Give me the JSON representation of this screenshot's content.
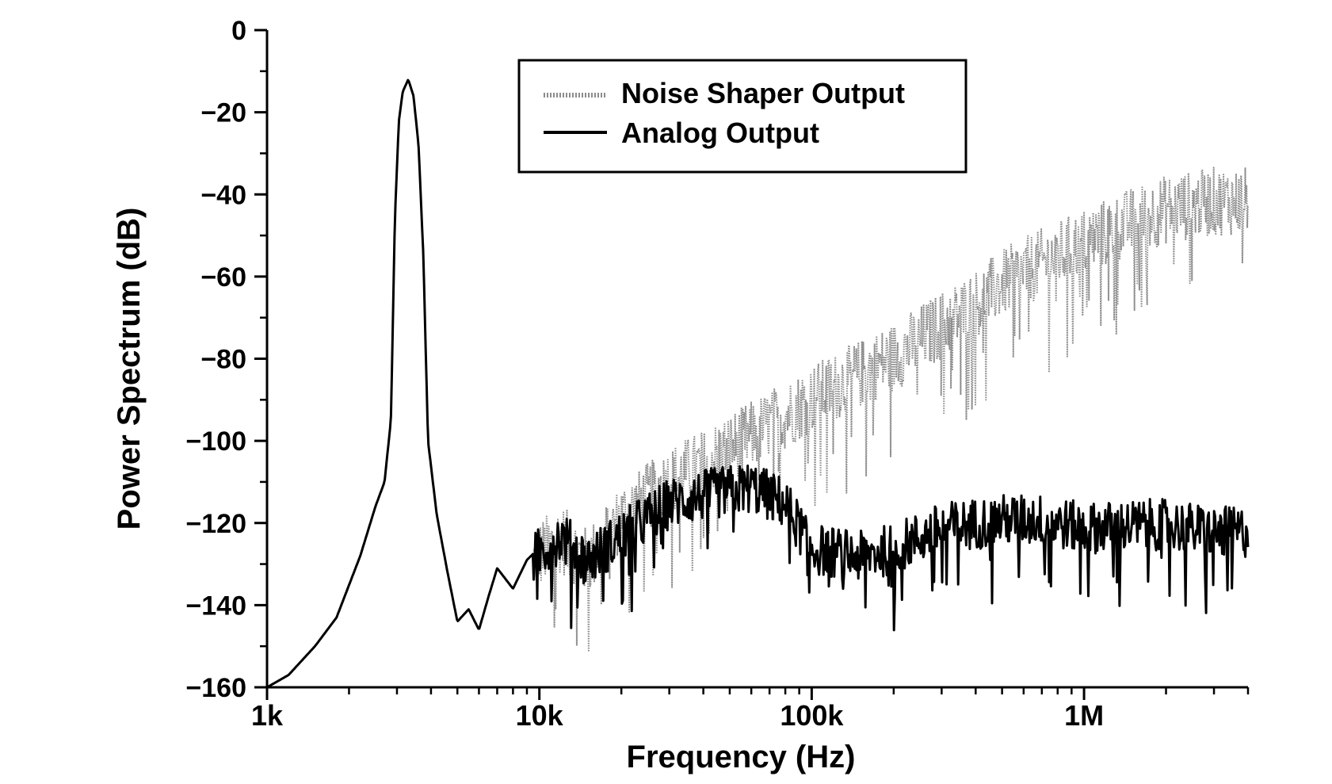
{
  "chart_data": {
    "type": "line",
    "xlabel": "Frequency (Hz)",
    "ylabel": "Power Spectrum (dB)",
    "x_scale": "log",
    "xlim": [
      1000,
      4000000
    ],
    "ylim": [
      -160,
      0
    ],
    "x_ticks": [
      {
        "value": 1000,
        "label": "1k"
      },
      {
        "value": 10000,
        "label": "10k"
      },
      {
        "value": 100000,
        "label": "100k"
      },
      {
        "value": 1000000,
        "label": "1M"
      }
    ],
    "y_ticks": [
      {
        "value": 0,
        "label": "0"
      },
      {
        "value": -20,
        "label": "−20"
      },
      {
        "value": -40,
        "label": "−40"
      },
      {
        "value": -60,
        "label": "−60"
      },
      {
        "value": -80,
        "label": "−80"
      },
      {
        "value": -100,
        "label": "−100"
      },
      {
        "value": -120,
        "label": "−120"
      },
      {
        "value": -140,
        "label": "−140"
      },
      {
        "value": -160,
        "label": "−160"
      }
    ],
    "grid": false,
    "legend_position": "top-center",
    "series": [
      {
        "name": "Noise Shaper Output",
        "style": "dotted-gray",
        "color": "#8c8c8c",
        "points": [
          [
            1000,
            -160
          ],
          [
            1200,
            -157
          ],
          [
            1500,
            -150
          ],
          [
            1800,
            -143
          ],
          [
            2200,
            -128
          ],
          [
            2500,
            -116
          ],
          [
            2700,
            -110
          ],
          [
            2850,
            -95
          ],
          [
            2950,
            -45
          ],
          [
            3050,
            -22
          ],
          [
            3150,
            -15
          ],
          [
            3300,
            -12
          ],
          [
            3450,
            -16
          ],
          [
            3600,
            -28
          ],
          [
            3750,
            -55
          ],
          [
            3900,
            -100
          ],
          [
            4200,
            -118
          ],
          [
            4600,
            -132
          ],
          [
            5000,
            -144
          ],
          [
            5500,
            -141
          ],
          [
            6000,
            -146
          ],
          [
            6500,
            -138
          ],
          [
            7000,
            -131
          ],
          [
            8000,
            -136
          ],
          [
            9000,
            -129
          ],
          [
            10000,
            -126
          ],
          [
            12000,
            -122
          ],
          [
            15000,
            -128
          ],
          [
            20000,
            -117
          ],
          [
            30000,
            -108
          ],
          [
            40000,
            -104
          ],
          [
            50000,
            -100
          ],
          [
            60000,
            -97
          ],
          [
            80000,
            -92
          ],
          [
            100000,
            -88
          ],
          [
            150000,
            -82
          ],
          [
            200000,
            -78
          ],
          [
            300000,
            -70
          ],
          [
            400000,
            -65
          ],
          [
            500000,
            -60
          ],
          [
            700000,
            -55
          ],
          [
            1000000,
            -50
          ],
          [
            1500000,
            -45
          ],
          [
            2000000,
            -42
          ],
          [
            3000000,
            -40
          ],
          [
            4000000,
            -40
          ]
        ],
        "noise_amplitude_db": 12
      },
      {
        "name": "Analog Output",
        "style": "solid-black",
        "color": "#000000",
        "points": [
          [
            1000,
            -160
          ],
          [
            1200,
            -157
          ],
          [
            1500,
            -150
          ],
          [
            1800,
            -143
          ],
          [
            2200,
            -128
          ],
          [
            2500,
            -116
          ],
          [
            2700,
            -110
          ],
          [
            2850,
            -95
          ],
          [
            2950,
            -45
          ],
          [
            3050,
            -22
          ],
          [
            3150,
            -15
          ],
          [
            3300,
            -12
          ],
          [
            3450,
            -16
          ],
          [
            3600,
            -28
          ],
          [
            3750,
            -55
          ],
          [
            3900,
            -100
          ],
          [
            4200,
            -118
          ],
          [
            4600,
            -132
          ],
          [
            5000,
            -144
          ],
          [
            5500,
            -141
          ],
          [
            6000,
            -146
          ],
          [
            6500,
            -138
          ],
          [
            7000,
            -131
          ],
          [
            8000,
            -136
          ],
          [
            9000,
            -129
          ],
          [
            10000,
            -126
          ],
          [
            12000,
            -122
          ],
          [
            15000,
            -128
          ],
          [
            20000,
            -122
          ],
          [
            30000,
            -114
          ],
          [
            40000,
            -112
          ],
          [
            60000,
            -110
          ],
          [
            80000,
            -114
          ],
          [
            100000,
            -125
          ],
          [
            150000,
            -127
          ],
          [
            200000,
            -125
          ],
          [
            300000,
            -120
          ],
          [
            500000,
            -118
          ],
          [
            700000,
            -118
          ],
          [
            1000000,
            -120
          ],
          [
            2000000,
            -119
          ],
          [
            3000000,
            -121
          ],
          [
            4000000,
            -121
          ]
        ],
        "noise_amplitude_db": 9
      }
    ]
  }
}
